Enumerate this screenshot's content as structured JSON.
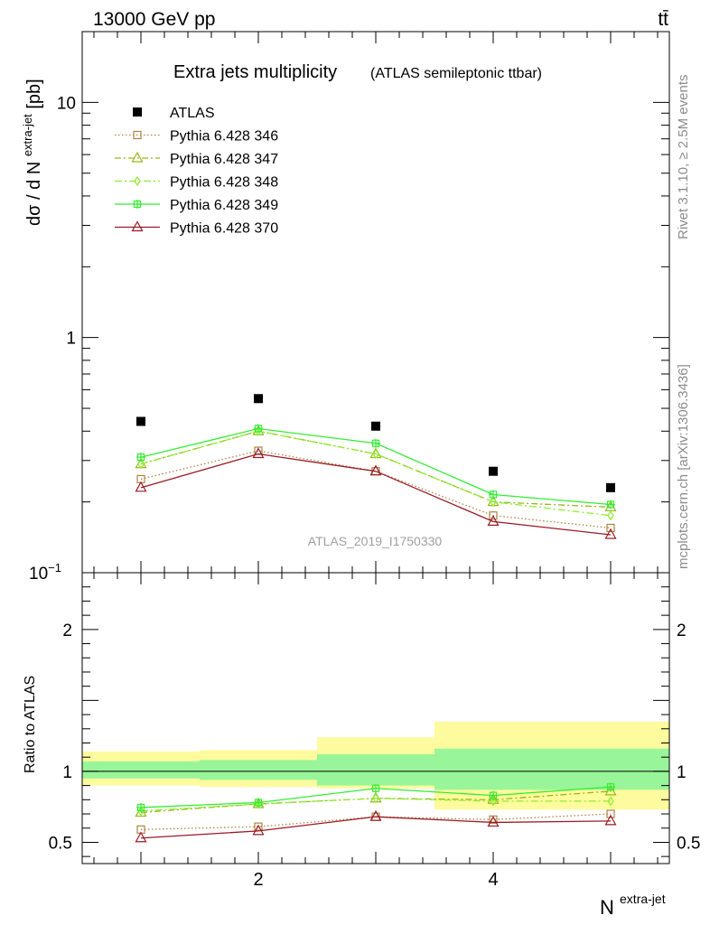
{
  "header": {
    "left": "13000 GeV pp",
    "right": "tt̄"
  },
  "main": {
    "title": "Extra jets multiplicity",
    "subtitle": "(ATLAS semileptonic ttbar)",
    "ylabel_main": "dσ / d N",
    "ylabel_sup": "extra-jet",
    "ylabel_unit": "[pb]",
    "watermark": "ATLAS_2019_I1750330",
    "yticks": [
      {
        "v": 10,
        "text": "10"
      },
      {
        "v": 1,
        "text": "1"
      },
      {
        "v": 0.1,
        "text": "10",
        "sup": "−1"
      }
    ]
  },
  "ratio": {
    "ylabel": "Ratio to ATLAS",
    "yticks": [
      "0.5",
      "1",
      "2"
    ]
  },
  "xaxis": {
    "label": "N",
    "label_sup": "extra-jet",
    "ticks": [
      "2",
      "4"
    ]
  },
  "side": {
    "rivet": "Rivet 3.1.10, ≥ 2.5M events",
    "mcplots": "mcplots.cern.ch [arXiv:1306.3436]"
  },
  "colors": {
    "atlas": "#000000",
    "p346": "#b08440",
    "p347": "#99b61c",
    "p348": "#90ee30",
    "p349": "#33ee33",
    "p370": "#9b1a26",
    "band_inner": "#99f599",
    "band_outer": "#fdfb9d"
  },
  "chart_data": {
    "type": "scatter",
    "x": [
      1,
      2,
      3,
      4,
      5
    ],
    "xlim": [
      0.5,
      5.5
    ],
    "ylim": [
      0.1,
      20
    ],
    "yscale": "log",
    "ratio_ylim": [
      0.35,
      2.4
    ],
    "bin_edges": [
      0.5,
      1.5,
      2.5,
      3.5,
      4.5,
      5.5
    ],
    "series": [
      {
        "name": "ATLAS",
        "values": [
          0.44,
          0.55,
          0.42,
          0.27,
          0.23
        ],
        "ratio": [
          1,
          1,
          1,
          1,
          1
        ]
      },
      {
        "name": "Pythia 6.428 346",
        "values": [
          0.25,
          0.33,
          0.27,
          0.175,
          0.155
        ],
        "ratio": [
          0.59,
          0.61,
          0.68,
          0.66,
          0.7
        ]
      },
      {
        "name": "Pythia 6.428 347",
        "values": [
          0.29,
          0.4,
          0.32,
          0.2,
          0.19
        ],
        "ratio": [
          0.71,
          0.77,
          0.81,
          0.8,
          0.86
        ]
      },
      {
        "name": "Pythia 6.428 348",
        "values": [
          0.29,
          0.4,
          0.32,
          0.2,
          0.175
        ],
        "ratio": [
          0.72,
          0.77,
          0.81,
          0.79,
          0.79
        ]
      },
      {
        "name": "Pythia 6.428 349",
        "values": [
          0.31,
          0.41,
          0.355,
          0.215,
          0.195
        ],
        "ratio": [
          0.745,
          0.78,
          0.88,
          0.83,
          0.89
        ]
      },
      {
        "name": "Pythia 6.428 370",
        "values": [
          0.23,
          0.32,
          0.27,
          0.165,
          0.145
        ],
        "ratio": [
          0.53,
          0.58,
          0.68,
          0.64,
          0.65
        ]
      }
    ],
    "ratio_band_inner": [
      [
        0.95,
        1.07
      ],
      [
        0.94,
        1.08
      ],
      [
        0.9,
        1.12
      ],
      [
        0.87,
        1.16
      ],
      [
        0.87,
        1.16
      ]
    ],
    "ratio_band_outer": [
      [
        0.9,
        1.14
      ],
      [
        0.89,
        1.15
      ],
      [
        0.88,
        1.24
      ],
      [
        0.73,
        1.35
      ],
      [
        0.73,
        1.35
      ]
    ]
  }
}
